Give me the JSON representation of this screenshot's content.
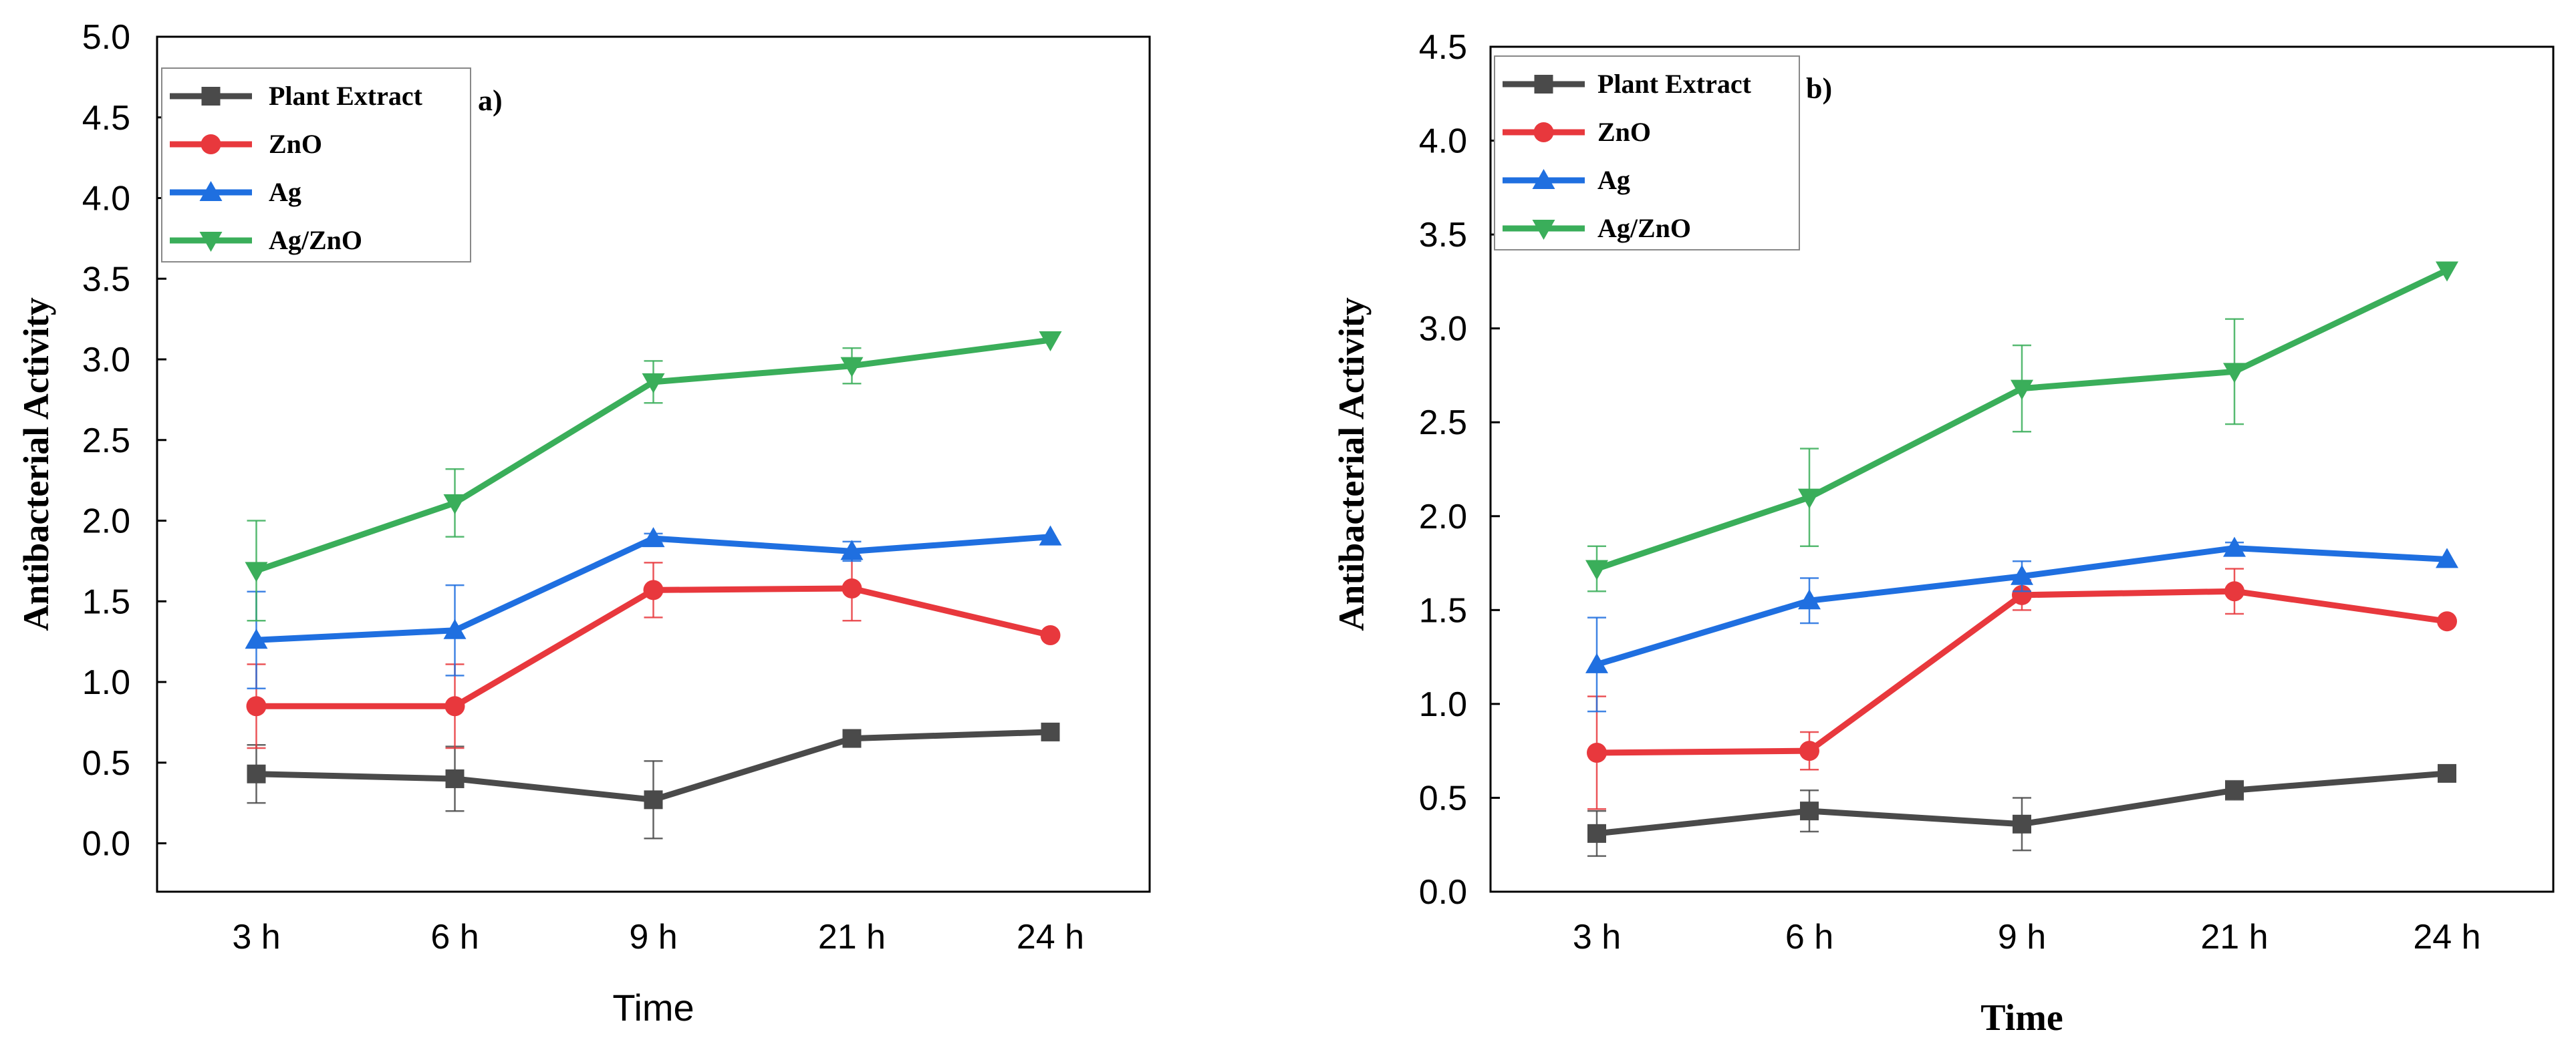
{
  "chart_data": [
    {
      "type": "line",
      "panel_label": "a)",
      "xlabel": "Time",
      "ylabel": "Antibacterial Activity",
      "categories": [
        "3 h",
        "6 h",
        "9 h",
        "21 h",
        "24 h"
      ],
      "ylim": [
        -0.3,
        5.0
      ],
      "yticks": [
        "0.0",
        "0.5",
        "1.0",
        "1.5",
        "2.0",
        "2.5",
        "3.0",
        "3.5",
        "4.0",
        "4.5",
        "5.0"
      ],
      "ytick_values": [
        0,
        0.5,
        1.0,
        1.5,
        2.0,
        2.5,
        3.0,
        3.5,
        4.0,
        4.5,
        5.0
      ],
      "grid": false,
      "legend_position": "top-left",
      "series": [
        {
          "name": "Plant Extract",
          "color": "#4a4a4a",
          "marker": "square",
          "values": [
            0.43,
            0.4,
            0.27,
            0.65,
            0.69
          ],
          "errors": [
            0.18,
            0.2,
            0.24,
            0.03,
            0.02
          ]
        },
        {
          "name": "ZnO",
          "color": "#e8383d",
          "marker": "circle",
          "values": [
            0.85,
            0.85,
            1.57,
            1.58,
            1.29
          ],
          "errors": [
            0.26,
            0.26,
            0.17,
            0.2,
            0.02
          ]
        },
        {
          "name": "Ag",
          "color": "#1f6fe0",
          "marker": "triangle-up",
          "values": [
            1.26,
            1.32,
            1.89,
            1.81,
            1.9
          ],
          "errors": [
            0.3,
            0.28,
            0.03,
            0.06,
            0.02
          ]
        },
        {
          "name": "Ag/ZnO",
          "color": "#3aae5a",
          "marker": "triangle-down",
          "values": [
            1.69,
            2.11,
            2.86,
            2.96,
            3.12
          ],
          "errors": [
            0.31,
            0.21,
            0.13,
            0.11,
            0.02
          ]
        }
      ]
    },
    {
      "type": "line",
      "panel_label": "b)",
      "xlabel": "Time",
      "ylabel": "Antibacterial Activity",
      "categories": [
        "3  h",
        "6 h",
        "9  h",
        "21  h",
        "24  h"
      ],
      "ylim": [
        0.0,
        4.5
      ],
      "yticks": [
        "0.0",
        "0.5",
        "1.0",
        "1.5",
        "2.0",
        "2.5",
        "3.0",
        "3.5",
        "4.0",
        "4.5"
      ],
      "ytick_values": [
        0,
        0.5,
        1.0,
        1.5,
        2.0,
        2.5,
        3.0,
        3.5,
        4.0,
        4.5
      ],
      "grid": false,
      "legend_position": "top-left",
      "series": [
        {
          "name": "Plant Extract",
          "color": "#4a4a4a",
          "marker": "square",
          "values": [
            0.31,
            0.43,
            0.36,
            0.54,
            0.63
          ],
          "errors": [
            0.12,
            0.11,
            0.14,
            0.05,
            0.02
          ]
        },
        {
          "name": "ZnO",
          "color": "#e8383d",
          "marker": "circle",
          "values": [
            0.74,
            0.75,
            1.58,
            1.6,
            1.44
          ],
          "errors": [
            0.3,
            0.1,
            0.08,
            0.12,
            0.02
          ]
        },
        {
          "name": "Ag",
          "color": "#1f6fe0",
          "marker": "triangle-up",
          "values": [
            1.21,
            1.55,
            1.68,
            1.83,
            1.77
          ],
          "errors": [
            0.25,
            0.12,
            0.08,
            0.03,
            0.02
          ]
        },
        {
          "name": "Ag/ZnO",
          "color": "#3aae5a",
          "marker": "triangle-down",
          "values": [
            1.72,
            2.1,
            2.68,
            2.77,
            3.31
          ],
          "errors": [
            0.12,
            0.26,
            0.23,
            0.28,
            0.02
          ]
        }
      ]
    }
  ]
}
